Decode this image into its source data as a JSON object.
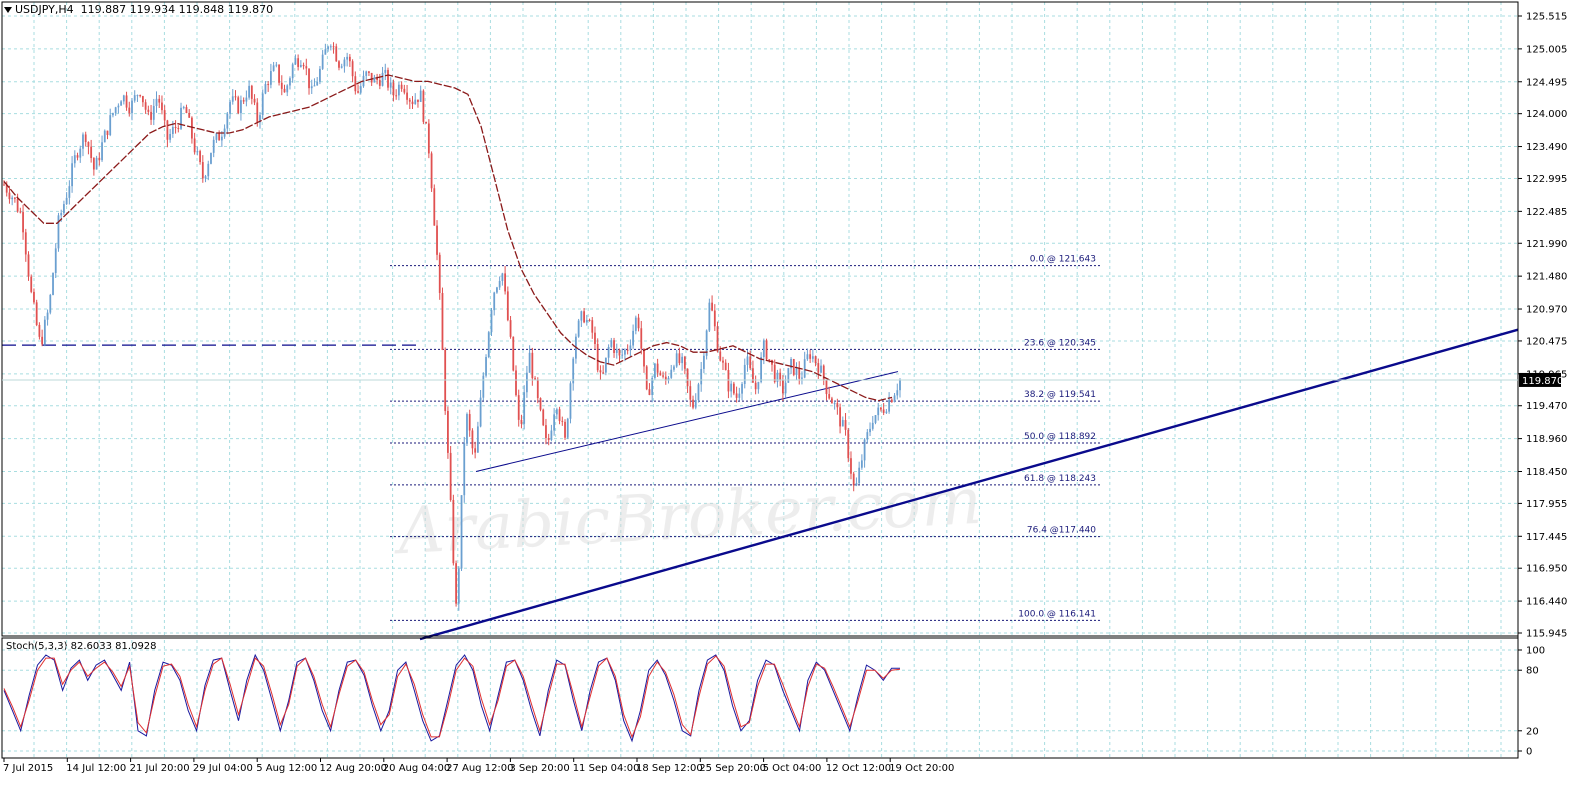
{
  "header": {
    "symbol_tf": "USDJPY,H4",
    "ohlc": "119.887 119.934 119.848 119.870"
  },
  "stoch_label": "Stoch(5,3,3) 82.6033 81.0928",
  "watermark": "ArabicBroker.com",
  "colors": {
    "bull": "#6a9fd0",
    "bear": "#e05050",
    "ma": "#8b1a1a",
    "trend": "#0a0a8c",
    "fib": "#1a1a7a",
    "grid": "#a8dde0",
    "stoch_main": "#1a1aa0",
    "stoch_signal": "#e03030",
    "price_badge_bg": "#000000",
    "price_badge_fg": "#ffffff"
  },
  "chart_data": [
    {
      "type": "candlestick",
      "title": "USDJPY,H4",
      "ylim": [
        115.945,
        125.515
      ],
      "y_ticks": [
        "125.515",
        "125.005",
        "124.495",
        "124.000",
        "123.490",
        "122.995",
        "122.485",
        "121.990",
        "121.480",
        "120.970",
        "120.475",
        "119.965",
        "119.470",
        "118.960",
        "118.450",
        "117.955",
        "117.445",
        "116.950",
        "116.440",
        "115.945"
      ],
      "x_ticks": [
        "7 Jul 2015",
        "14 Jul 12:00",
        "21 Jul 20:00",
        "29 Jul 04:00",
        "5 Aug 12:00",
        "12 Aug 20:00",
        "20 Aug 04:00",
        "27 Aug 12:00",
        "3 Sep 20:00",
        "11 Sep 04:00",
        "18 Sep 12:00",
        "25 Sep 20:00",
        "5 Oct 04:00",
        "12 Oct 12:00",
        "19 Oct 20:00"
      ],
      "current_price": "119.870",
      "price_path": [
        122.9,
        122.7,
        122.4,
        121.2,
        120.4,
        121.0,
        122.3,
        122.8,
        123.4,
        123.7,
        123.1,
        123.6,
        124.0,
        124.3,
        124.1,
        124.4,
        123.9,
        124.3,
        123.6,
        123.8,
        124.1,
        123.5,
        123.0,
        123.5,
        123.7,
        124.2,
        124.1,
        124.4,
        123.9,
        124.5,
        124.7,
        124.3,
        124.8,
        124.9,
        124.3,
        124.7,
        125.2,
        124.8,
        124.9,
        124.3,
        124.6,
        124.5,
        124.6,
        124.3,
        124.5,
        124.2,
        124.3,
        123.4,
        121.5,
        118.8,
        116.2,
        119.4,
        118.6,
        120.0,
        121.2,
        121.6,
        120.4,
        119.0,
        120.3,
        119.5,
        118.8,
        119.6,
        118.9,
        120.5,
        120.9,
        120.6,
        119.8,
        120.5,
        120.2,
        120.4,
        120.9,
        119.6,
        120.1,
        119.8,
        120.2,
        120.1,
        119.4,
        120.0,
        121.1,
        120.3,
        119.8,
        119.6,
        120.2,
        119.7,
        120.4,
        120.0,
        119.7,
        120.1,
        119.9,
        120.3,
        120.1,
        119.7,
        119.4,
        119.0,
        118.1,
        118.8,
        119.3,
        119.4,
        119.6,
        119.87
      ],
      "moving_average": [
        122.95,
        122.7,
        122.5,
        122.3,
        122.3,
        122.5,
        122.7,
        122.9,
        123.1,
        123.3,
        123.5,
        123.7,
        123.8,
        123.85,
        123.8,
        123.75,
        123.7,
        123.7,
        123.75,
        123.85,
        123.95,
        124.0,
        124.05,
        124.1,
        124.2,
        124.3,
        124.4,
        124.5,
        124.55,
        124.6,
        124.55,
        124.5,
        124.5,
        124.45,
        124.4,
        124.3,
        123.8,
        123.0,
        122.2,
        121.6,
        121.2,
        120.9,
        120.6,
        120.4,
        120.25,
        120.15,
        120.1,
        120.2,
        120.3,
        120.4,
        120.45,
        120.4,
        120.3,
        120.3,
        120.35,
        120.4,
        120.3,
        120.2,
        120.15,
        120.1,
        120.05,
        120.0,
        119.9,
        119.8,
        119.7,
        119.6,
        119.55,
        119.6
      ],
      "horizontal_line": 120.41,
      "fibonacci_levels": [
        {
          "label": "0.0 @ 121.643",
          "price": 121.643
        },
        {
          "label": "23.6 @ 120.345",
          "price": 120.345
        },
        {
          "label": "38.2 @ 119.541",
          "price": 119.541
        },
        {
          "label": "50.0 @ 118.892",
          "price": 118.892
        },
        {
          "label": "61.8 @ 118.243",
          "price": 118.243
        },
        {
          "label": "76.4 @117.440",
          "price": 117.44
        },
        {
          "label": "100.0 @ 116.141",
          "price": 116.141
        }
      ],
      "trendlines": [
        {
          "from_price": 115.85,
          "to_price": 120.65,
          "weight": "thick"
        },
        {
          "from_price": 118.45,
          "to_price": 120.0,
          "weight": "thin"
        }
      ]
    },
    {
      "type": "line",
      "title": "Stoch(5,3,3) 82.6033 81.0928",
      "ylim": [
        0,
        100
      ],
      "y_ticks": [
        "100",
        "80",
        "20",
        "0"
      ],
      "series": [
        {
          "values": [
            60,
            40,
            20,
            55,
            85,
            95,
            90,
            60,
            82,
            90,
            70,
            85,
            90,
            75,
            60,
            88,
            20,
            15,
            60,
            88,
            85,
            70,
            40,
            20,
            65,
            90,
            92,
            60,
            30,
            70,
            95,
            80,
            50,
            20,
            50,
            88,
            92,
            70,
            40,
            20,
            60,
            88,
            90,
            75,
            45,
            20,
            40,
            80,
            88,
            60,
            30,
            10,
            15,
            50,
            85,
            95,
            80,
            45,
            20,
            55,
            88,
            90,
            70,
            40,
            15,
            60,
            90,
            85,
            50,
            20,
            60,
            88,
            92,
            70,
            30,
            10,
            40,
            80,
            90,
            75,
            50,
            20,
            15,
            60,
            90,
            95,
            80,
            45,
            20,
            30,
            70,
            90,
            85,
            60,
            40,
            20,
            70,
            88,
            80,
            60,
            40,
            20,
            55,
            85,
            80,
            70,
            82,
            82
          ]
        },
        {
          "values": [
            62,
            44,
            24,
            50,
            80,
            92,
            92,
            66,
            80,
            88,
            74,
            82,
            88,
            78,
            64,
            84,
            28,
            18,
            54,
            84,
            86,
            74,
            46,
            24,
            60,
            86,
            92,
            66,
            36,
            64,
            92,
            84,
            56,
            26,
            46,
            84,
            92,
            74,
            46,
            24,
            56,
            84,
            90,
            78,
            50,
            26,
            36,
            74,
            86,
            66,
            36,
            14,
            14,
            44,
            80,
            92,
            84,
            52,
            26,
            50,
            84,
            90,
            74,
            46,
            20,
            54,
            86,
            86,
            56,
            24,
            54,
            84,
            92,
            74,
            36,
            14,
            34,
            74,
            88,
            78,
            56,
            26,
            16,
            54,
            86,
            94,
            84,
            52,
            24,
            28,
            64,
            86,
            86,
            66,
            44,
            24,
            64,
            86,
            82,
            64,
            44,
            24,
            50,
            80,
            80,
            72,
            80,
            81
          ]
        }
      ]
    }
  ]
}
